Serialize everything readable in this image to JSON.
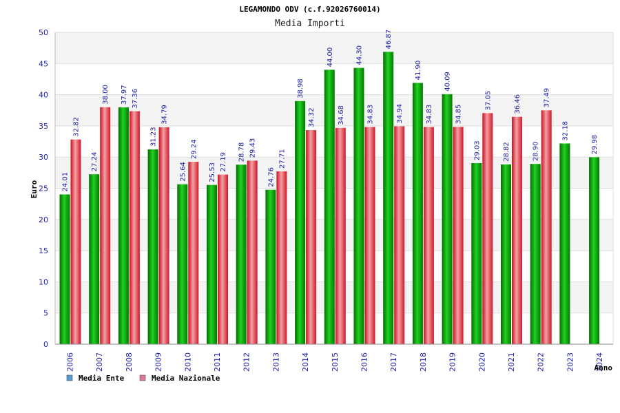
{
  "chart_data": {
    "type": "bar",
    "title": "LEGAMONDO ODV (c.f.92026760014)",
    "subtitle": "Media Importi",
    "ylabel": "Euro",
    "xlabel": "Anno",
    "ylim": [
      0,
      50
    ],
    "yticks": [
      0,
      5,
      10,
      15,
      20,
      25,
      30,
      35,
      40,
      45,
      50
    ],
    "grid": true,
    "legend_position": "bottom-left",
    "categories": [
      "2006",
      "2007",
      "2008",
      "2009",
      "2010",
      "2011",
      "2012",
      "2013",
      "2014",
      "2015",
      "2016",
      "2017",
      "2018",
      "2019",
      "2020",
      "2021",
      "2022",
      "2023",
      "2024"
    ],
    "series": [
      {
        "name": "Media Ente",
        "color": "#1aa81a",
        "legend_color": "#5b9bd5",
        "values": [
          24.01,
          27.24,
          37.97,
          31.23,
          25.64,
          25.53,
          28.78,
          24.76,
          38.98,
          44.0,
          44.3,
          46.87,
          41.9,
          40.09,
          29.03,
          28.82,
          28.9,
          32.18,
          29.98
        ],
        "labels": [
          "24.01",
          "27.24",
          "37.97",
          "31.23",
          "25.64",
          "25.53",
          "28.78",
          "24.76",
          "38.98",
          "44.00",
          "44.30",
          "46.87",
          "41.90",
          "40.09",
          "29.03",
          "28.82",
          "28.90",
          "32.18",
          "29.98"
        ]
      },
      {
        "name": "Media Nazionale",
        "color": "#e8323c",
        "legend_color": "#e07aa0",
        "values": [
          32.82,
          38.0,
          37.36,
          34.79,
          29.24,
          27.19,
          29.43,
          27.71,
          34.32,
          34.68,
          34.83,
          34.94,
          34.83,
          34.85,
          37.05,
          36.46,
          37.49,
          null,
          null
        ],
        "labels": [
          "32.82",
          "38.00",
          "37.36",
          "34.79",
          "29.24",
          "27.19",
          "29.43",
          "27.71",
          "34.32",
          "34.68",
          "34.83",
          "34.94",
          "34.83",
          "34.85",
          "37.05",
          "36.46",
          "37.49",
          null,
          null
        ]
      }
    ]
  }
}
